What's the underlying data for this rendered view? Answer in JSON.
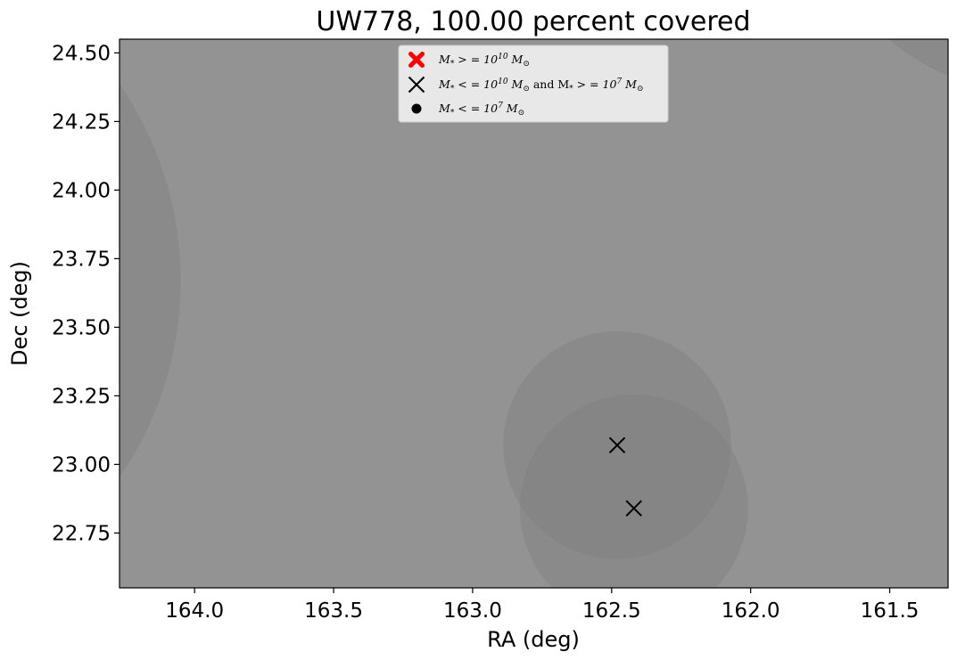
{
  "chart_data": {
    "type": "scatter",
    "title": "UW778, 100.00 percent covered",
    "xlabel": "RA (deg)",
    "ylabel": "Dec (deg)",
    "xlim": [
      164.27,
      161.29
    ],
    "ylim": [
      22.55,
      24.55
    ],
    "x_inverted": true,
    "x_ticks": [
      164.0,
      163.5,
      163.0,
      162.5,
      162.0,
      161.5
    ],
    "x_tick_labels": [
      "164.0",
      "163.5",
      "163.0",
      "162.5",
      "162.0",
      "161.5"
    ],
    "y_ticks": [
      22.75,
      23.0,
      23.25,
      23.5,
      23.75,
      24.0,
      24.25,
      24.5
    ],
    "y_tick_labels": [
      "22.75",
      "23.00",
      "23.25",
      "23.50",
      "23.75",
      "24.00",
      "24.25",
      "24.50"
    ],
    "background_color": "#939393",
    "coverage_circles": [
      {
        "ra": 165.3,
        "dec": 23.67,
        "radius": 1.25
      },
      {
        "ra": 160.97,
        "dec": 25.18,
        "radius": 0.82
      },
      {
        "ra": 162.48,
        "dec": 23.07,
        "radius": 0.41
      },
      {
        "ra": 162.42,
        "dec": 22.84,
        "radius": 0.41
      }
    ],
    "circle_color": "#7a7a7a",
    "series": [
      {
        "name": "M_* > = 10^10 M_sun",
        "marker": "filled-x",
        "color": "#ff0000",
        "points": []
      },
      {
        "name": "M_* < = 10^10 M_sun and M_* > = 10^7 M_sun",
        "marker": "x",
        "color": "#000000",
        "points": [
          {
            "x": 162.48,
            "y": 23.07
          },
          {
            "x": 162.42,
            "y": 22.84
          }
        ]
      },
      {
        "name": "M_* < = 10^7 M_sun",
        "marker": "dot",
        "color": "#000000",
        "points": []
      }
    ],
    "legend": {
      "placement": "top-center",
      "entries": [
        {
          "parts": [
            "M",
            "*",
            " > = 10",
            "10",
            " M",
            "⊙"
          ]
        },
        {
          "parts": [
            "M",
            "*",
            " < = 10",
            "10",
            " M",
            "⊙",
            " and M",
            "*",
            " > = 10",
            "7",
            " M",
            "⊙"
          ]
        },
        {
          "parts": [
            "M",
            "*",
            " < = 10",
            "7",
            " M",
            "⊙"
          ]
        }
      ]
    }
  }
}
